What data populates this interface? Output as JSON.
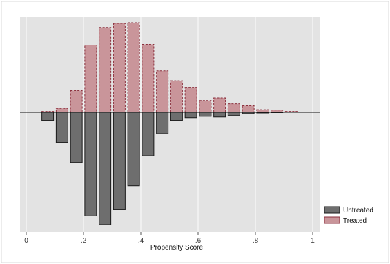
{
  "chart_data": {
    "type": "bar",
    "subtype": "mirrored-histogram",
    "title": "",
    "xlabel": "Propensity Score",
    "ylabel": "",
    "xlim": [
      0,
      1
    ],
    "x_ticks": [
      0,
      0.2,
      0.4,
      0.6,
      0.8,
      1
    ],
    "x_tick_labels": [
      "0",
      ".2",
      ".4",
      ".6",
      ".8",
      "1"
    ],
    "grid": true,
    "legend_position": "bottom-right",
    "bin_width": 0.05,
    "bin_centers": [
      0.075,
      0.125,
      0.175,
      0.225,
      0.275,
      0.325,
      0.375,
      0.425,
      0.475,
      0.525,
      0.575,
      0.625,
      0.675,
      0.725,
      0.775,
      0.825,
      0.875,
      0.925
    ],
    "series": [
      {
        "name": "Untreated",
        "direction": "down",
        "fill": "#6e6e6e",
        "stroke": "#1a1a1a",
        "values": [
          1.2,
          4.5,
          7.5,
          15.5,
          16.8,
          14.5,
          11.0,
          6.5,
          3.2,
          1.2,
          0.8,
          0.6,
          0.7,
          0.5,
          0.2,
          0.1,
          0.05,
          0
        ]
      },
      {
        "name": "Treated",
        "direction": "up",
        "fill": "#c9959a",
        "stroke": "#8b2f3c",
        "values": [
          0.15,
          0.6,
          3.3,
          10.2,
          12.9,
          13.5,
          13.6,
          10.3,
          6.3,
          4.8,
          3.8,
          1.8,
          2.2,
          1.3,
          1.0,
          0.4,
          0.35,
          0.15
        ]
      }
    ]
  },
  "colors": {
    "plot_background": "#e3e3e3",
    "grid": "#f5f5f5",
    "zero_line": "#111111"
  }
}
